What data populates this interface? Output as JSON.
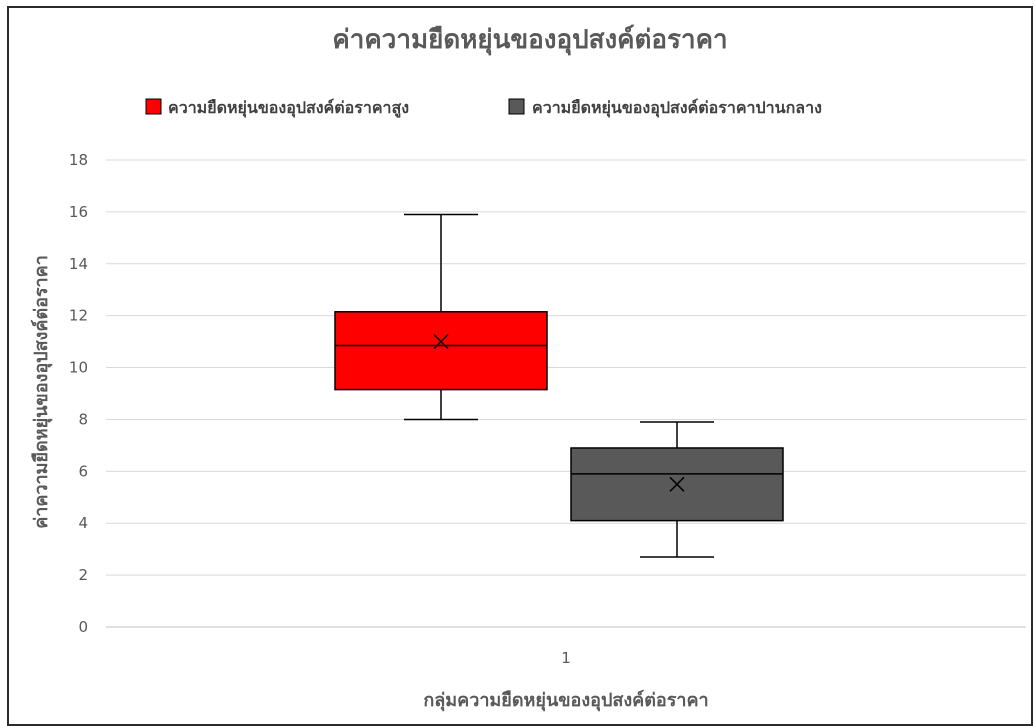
{
  "chart_data": {
    "type": "box",
    "title": "ค่าความยืดหยุ่นของอุปสงค์ต่อราคา",
    "xlabel": "กลุ่มความยืดหยุ่นของอุปสงค์ต่อราคา",
    "ylabel": "ค่าความยืดหยุ่นของอุปสงค์ต่อราคา",
    "categories": [
      "1"
    ],
    "ylim": [
      0,
      18
    ],
    "yticks": [
      0,
      2,
      4,
      6,
      8,
      10,
      12,
      14,
      16,
      18
    ],
    "grid": true,
    "legend_position": "top",
    "series": [
      {
        "name": "ความยืดหยุ่นของอุปสงค์ต่อราคาสูง",
        "color": "#ff0000",
        "min": 8.0,
        "q1": 9.15,
        "median": 10.85,
        "q3": 12.15,
        "max": 15.9,
        "mean": 11.0
      },
      {
        "name": "ความยืดหยุ่นของอุปสงค์ต่อราคาปานกลาง",
        "color": "#595959",
        "min": 2.7,
        "q1": 4.1,
        "median": 5.9,
        "q3": 6.9,
        "max": 7.9,
        "mean": 5.5
      }
    ]
  }
}
